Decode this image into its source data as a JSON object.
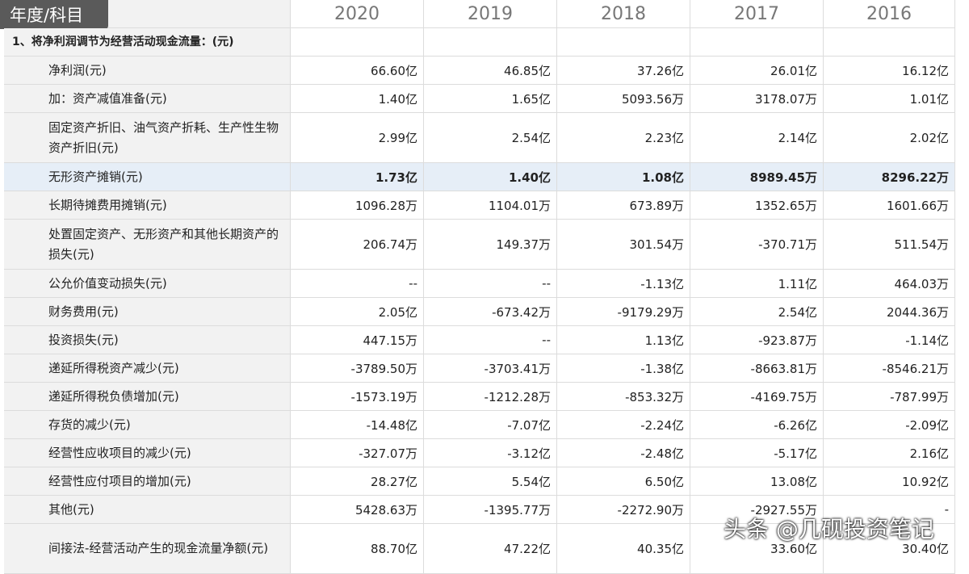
{
  "header": {
    "corner": "年度/科目",
    "years": [
      "2020",
      "2019",
      "2018",
      "2017",
      "2016"
    ]
  },
  "section": "1、将净利润调节为经营活动现金流量：(元)",
  "rows": [
    {
      "label": "净利润(元)",
      "values": [
        "66.60亿",
        "46.85亿",
        "37.26亿",
        "26.01亿",
        "16.12亿"
      ]
    },
    {
      "label": "加：资产减值准备(元)",
      "values": [
        "1.40亿",
        "1.65亿",
        "5093.56万",
        "3178.07万",
        "1.01亿"
      ]
    },
    {
      "label": "固定资产折旧、油气资产折耗、生产性生物资产折旧(元)",
      "values": [
        "2.99亿",
        "2.54亿",
        "2.23亿",
        "2.14亿",
        "2.02亿"
      ]
    },
    {
      "label": "无形资产摊销(元)",
      "values": [
        "1.73亿",
        "1.40亿",
        "1.08亿",
        "8989.45万",
        "8296.22万"
      ]
    },
    {
      "label": "长期待摊费用摊销(元)",
      "values": [
        "1096.28万",
        "1104.01万",
        "673.89万",
        "1352.65万",
        "1601.66万"
      ]
    },
    {
      "label": "处置固定资产、无形资产和其他长期资产的损失(元)",
      "values": [
        "206.74万",
        "149.37万",
        "301.54万",
        "-370.71万",
        "511.54万"
      ]
    },
    {
      "label": "公允价值变动损失(元)",
      "values": [
        "--",
        "--",
        "-1.13亿",
        "1.11亿",
        "464.03万"
      ]
    },
    {
      "label": "财务费用(元)",
      "values": [
        "2.05亿",
        "-673.42万",
        "-9179.29万",
        "2.54亿",
        "2044.36万"
      ]
    },
    {
      "label": "投资损失(元)",
      "values": [
        "447.15万",
        "--",
        "1.13亿",
        "-923.87万",
        "-1.14亿"
      ]
    },
    {
      "label": "递延所得税资产减少(元)",
      "values": [
        "-3789.50万",
        "-3703.41万",
        "-1.38亿",
        "-8663.81万",
        "-8546.21万"
      ]
    },
    {
      "label": "递延所得税负债增加(元)",
      "values": [
        "-1573.19万",
        "-1212.28万",
        "-853.32万",
        "-4169.75万",
        "-787.99万"
      ]
    },
    {
      "label": "存货的减少(元)",
      "values": [
        "-14.48亿",
        "-7.07亿",
        "-2.24亿",
        "-6.26亿",
        "-2.09亿"
      ]
    },
    {
      "label": "经营性应收项目的减少(元)",
      "values": [
        "-327.07万",
        "-3.12亿",
        "-2.48亿",
        "-5.17亿",
        "2.16亿"
      ]
    },
    {
      "label": "经营性应付项目的增加(元)",
      "values": [
        "28.27亿",
        "5.54亿",
        "6.50亿",
        "13.08亿",
        "10.92亿"
      ]
    },
    {
      "label": "其他(元)",
      "values": [
        "5428.63万",
        "-1395.77万",
        "-2272.90万",
        "-2927.55万",
        "-"
      ]
    },
    {
      "label": "间接法-经营活动产生的现金流量净额(元)",
      "values": [
        "88.70亿",
        "47.22亿",
        "40.35亿",
        "33.60亿",
        "30.40亿"
      ]
    }
  ],
  "watermark": "头条 @几砚投资笔记"
}
